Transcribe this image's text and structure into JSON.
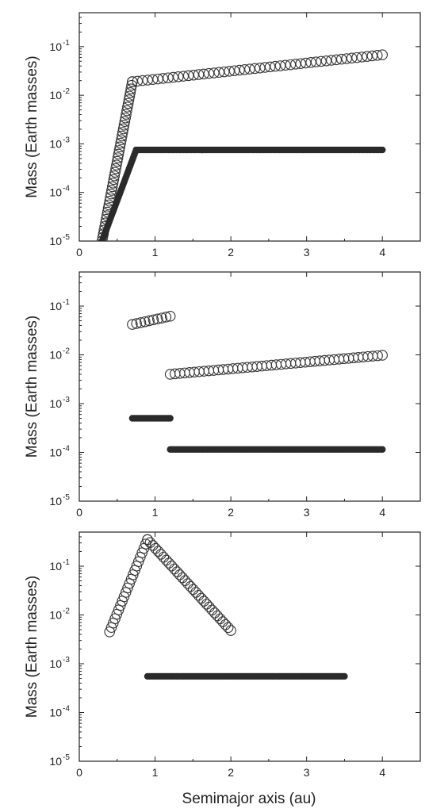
{
  "figure": {
    "xlabel": "Semimajor axis (au)"
  },
  "chart_data": [
    {
      "type": "scatter",
      "ylabel": "Mass (Earth masses)",
      "xlabel": "",
      "xlim": [
        0,
        4.5
      ],
      "ylim": [
        1e-05,
        0.5
      ],
      "yscale": "log",
      "xticks": [
        0,
        1,
        2,
        3,
        4
      ],
      "yticks": [
        1e-05,
        0.0001,
        0.001,
        0.01,
        0.1
      ],
      "yticklabels": [
        "10",
        "10",
        "10",
        "10",
        "10"
      ],
      "yticksup": [
        "-5",
        "-4",
        "-3",
        "-2",
        "-1"
      ],
      "series": [
        {
          "marker": "open-circle",
          "segments": [
            {
              "x_start": 0.3,
              "x_end": 0.7,
              "y_start": 1e-05,
              "y_end": 0.019,
              "n": 45
            },
            {
              "x_start": 0.7,
              "x_end": 4.0,
              "y_start": 0.019,
              "y_end": 0.068,
              "n": 50
            }
          ]
        },
        {
          "marker": "filled-circle",
          "segments": [
            {
              "x_start": 0.3,
              "x_end": 0.75,
              "y_start": 1e-05,
              "y_end": 0.00075,
              "n": 40
            },
            {
              "x_start": 0.75,
              "x_end": 4.0,
              "y_start": 0.00075,
              "y_end": 0.00075,
              "n": 130
            }
          ]
        }
      ]
    },
    {
      "type": "scatter",
      "ylabel": "Mass (Earth masses)",
      "xlabel": "",
      "xlim": [
        0,
        4.5
      ],
      "ylim": [
        1e-05,
        0.5
      ],
      "yscale": "log",
      "xticks": [
        0,
        1,
        2,
        3,
        4
      ],
      "yticks": [
        1e-05,
        0.0001,
        0.001,
        0.01,
        0.1
      ],
      "yticklabels": [
        "10",
        "10",
        "10",
        "10",
        "10"
      ],
      "yticksup": [
        "-5",
        "-4",
        "-3",
        "-2",
        "-1"
      ],
      "series": [
        {
          "marker": "open-circle",
          "segments": [
            {
              "x_start": 0.7,
              "x_end": 1.2,
              "y_start": 0.042,
              "y_end": 0.062,
              "n": 10
            },
            {
              "x_start": 1.2,
              "x_end": 4.0,
              "y_start": 0.004,
              "y_end": 0.0098,
              "n": 45
            }
          ]
        },
        {
          "marker": "filled-circle",
          "segments": [
            {
              "x_start": 0.7,
              "x_end": 1.2,
              "y_start": 0.0005,
              "y_end": 0.0005,
              "n": 20
            },
            {
              "x_start": 1.2,
              "x_end": 4.0,
              "y_start": 0.000115,
              "y_end": 0.000115,
              "n": 110
            }
          ]
        }
      ]
    },
    {
      "type": "scatter",
      "ylabel": "Mass (Earth masses)",
      "xlabel": "Semimajor axis (au)",
      "xlim": [
        0,
        4.5
      ],
      "ylim": [
        1e-05,
        0.5
      ],
      "yscale": "log",
      "xticks": [
        0,
        1,
        2,
        3,
        4
      ],
      "yticks": [
        1e-05,
        0.0001,
        0.001,
        0.01,
        0.1
      ],
      "yticklabels": [
        "10",
        "10",
        "10",
        "10",
        "10"
      ],
      "yticksup": [
        "-5",
        "-4",
        "-3",
        "-2",
        "-1"
      ],
      "series": [
        {
          "marker": "open-circle",
          "segments": [
            {
              "x_start": 0.4,
              "x_end": 0.9,
              "y_start": 0.0045,
              "y_end": 0.35,
              "n": 22
            },
            {
              "x_start": 0.9,
              "x_end": 2.0,
              "y_start": 0.35,
              "y_end": 0.0048,
              "n": 32
            }
          ]
        },
        {
          "marker": "filled-circle",
          "segments": [
            {
              "x_start": 0.9,
              "x_end": 3.5,
              "y_start": 0.00055,
              "y_end": 0.00055,
              "n": 110
            }
          ]
        }
      ]
    }
  ]
}
